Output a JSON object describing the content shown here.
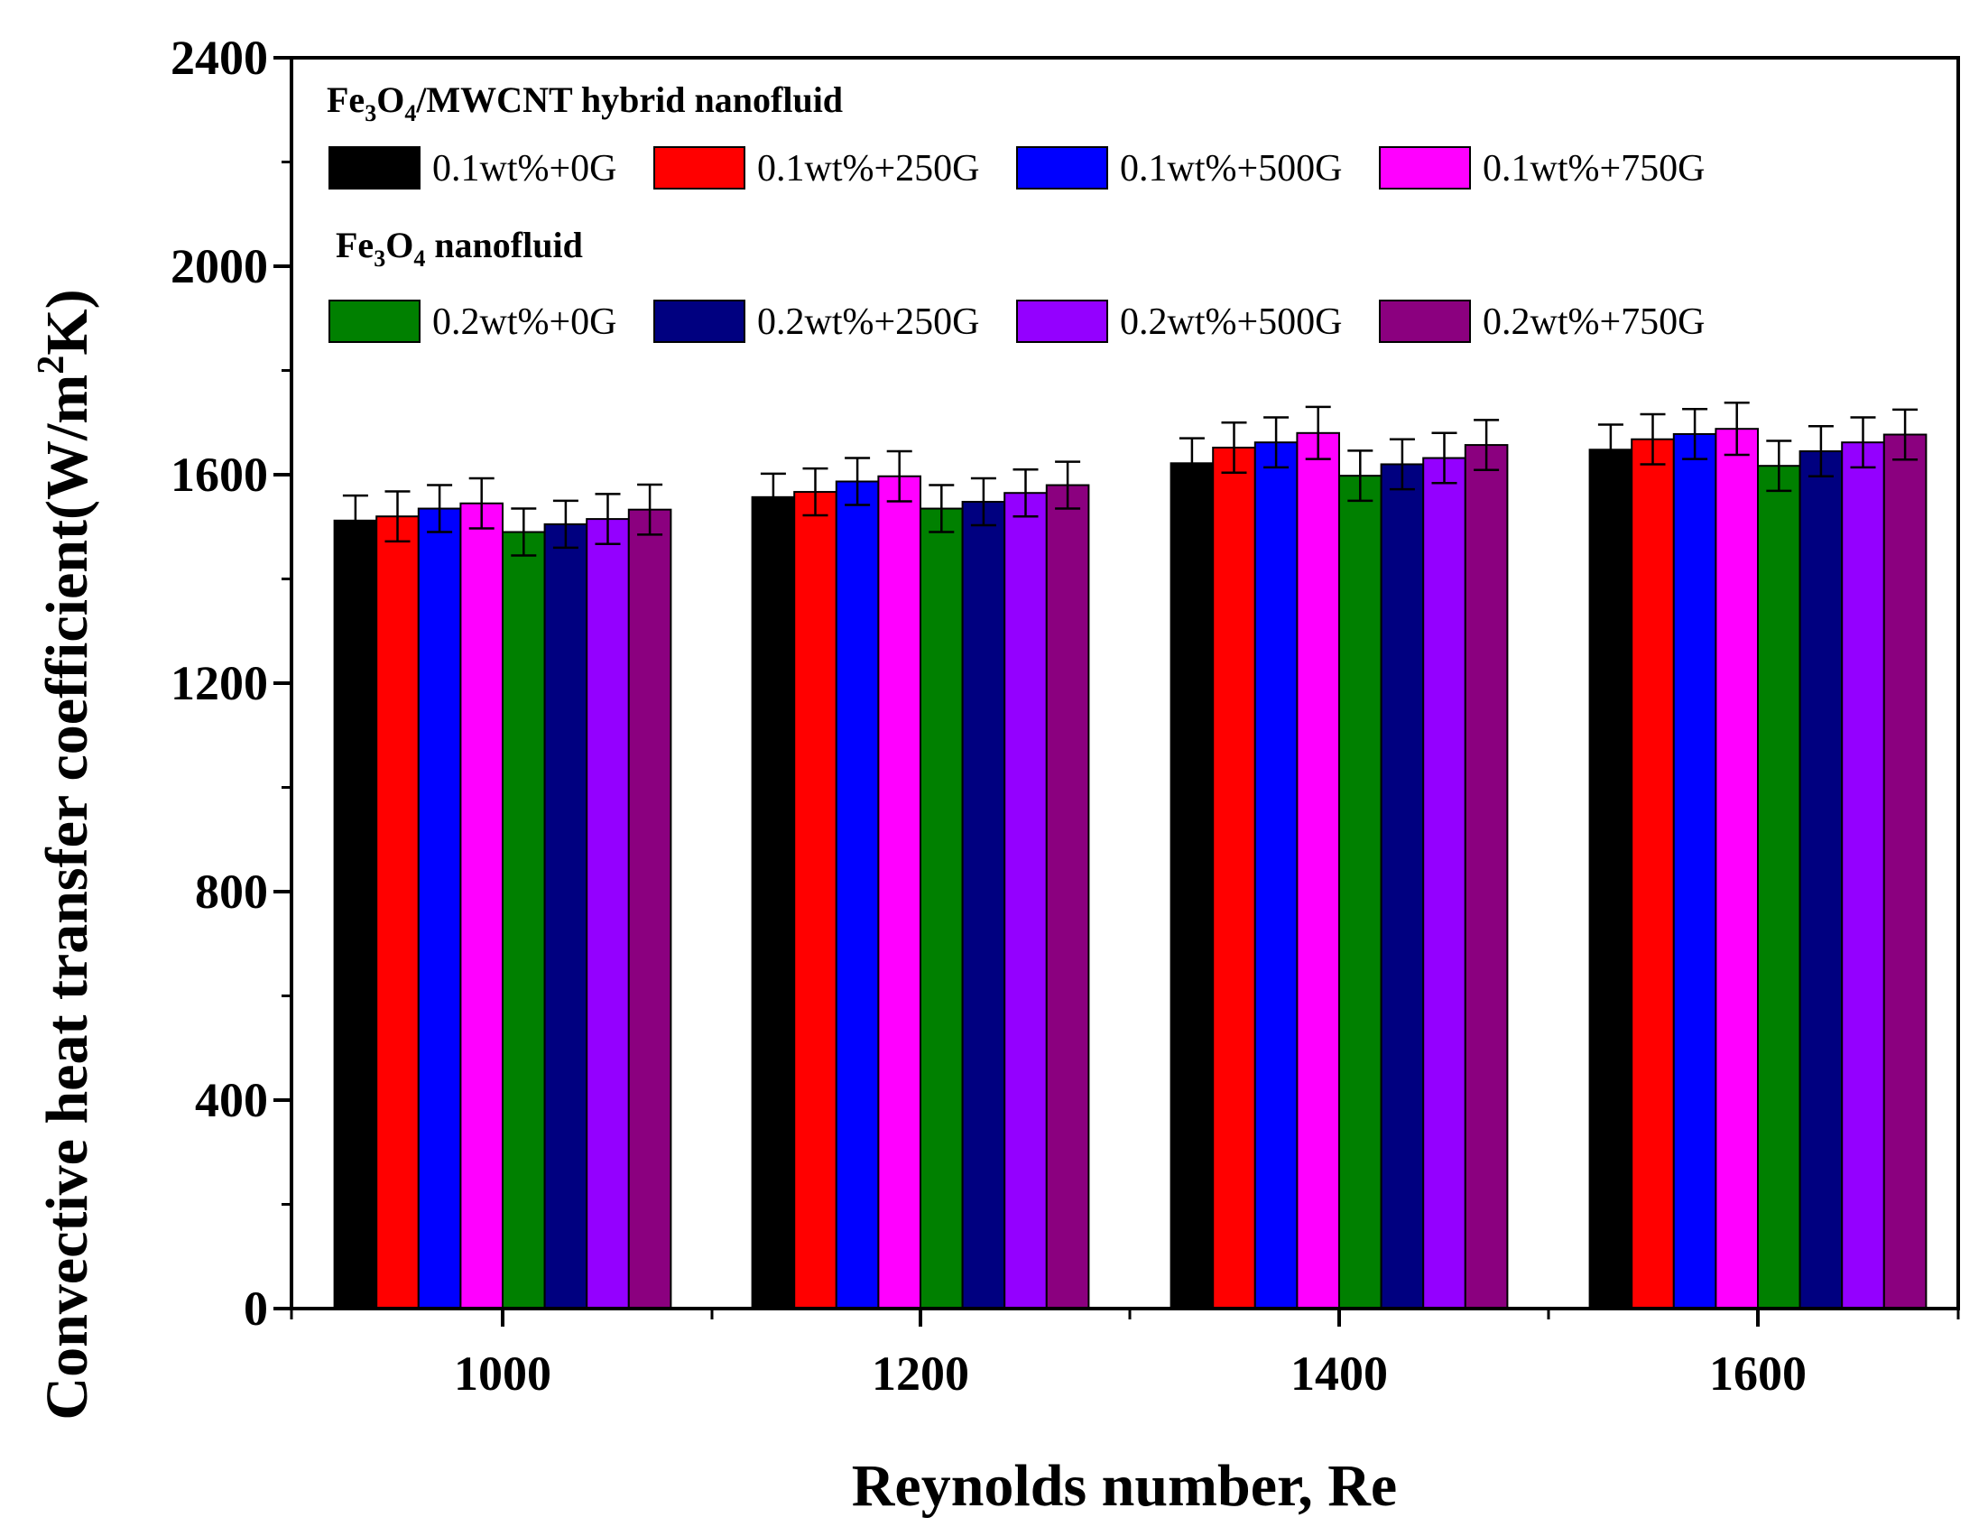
{
  "chart_data": {
    "type": "bar",
    "categories": [
      "1000",
      "1200",
      "1400",
      "1600"
    ],
    "xlabel": "Reynolds number, Re",
    "ylabel": {
      "main": "Convective heat transfer coefficient(W/m",
      "sup": "2",
      "tail": "K)"
    },
    "ylim": [
      0,
      2400
    ],
    "yticks": [
      0,
      400,
      800,
      1200,
      1600,
      2000,
      2400
    ],
    "grid": false,
    "legend_position": "top-left",
    "groups": [
      {
        "title": {
          "a": "Fe",
          "sub1": "3",
          "b": "O",
          "sub2": "4",
          "c": "/MWCNT hybrid nanofluid"
        }
      },
      {
        "title": {
          "a": "Fe",
          "sub1": "3",
          "b": "O",
          "sub2": "4",
          "c": " nanofluid"
        }
      }
    ],
    "series": [
      {
        "name": "0.1wt%+0G",
        "group": 0,
        "color": "#000000",
        "values": [
          1512,
          1557,
          1622,
          1648
        ],
        "errors": [
          48,
          45,
          48,
          48
        ]
      },
      {
        "name": "0.1wt%+250G",
        "group": 0,
        "color": "#ff0000",
        "values": [
          1520,
          1567,
          1652,
          1668
        ],
        "errors": [
          48,
          45,
          48,
          48
        ]
      },
      {
        "name": "0.1wt%+500G",
        "group": 0,
        "color": "#0000ff",
        "values": [
          1535,
          1587,
          1662,
          1678
        ],
        "errors": [
          45,
          45,
          48,
          48
        ]
      },
      {
        "name": "0.1wt%+750G",
        "group": 0,
        "color": "#ff00ff",
        "values": [
          1545,
          1597,
          1680,
          1688
        ],
        "errors": [
          48,
          48,
          50,
          50
        ]
      },
      {
        "name": "0.2wt%+0G",
        "group": 1,
        "color": "#008000",
        "values": [
          1490,
          1535,
          1598,
          1617
        ],
        "errors": [
          45,
          45,
          48,
          48
        ]
      },
      {
        "name": "0.2wt%+250G",
        "group": 1,
        "color": "#000080",
        "values": [
          1505,
          1548,
          1620,
          1645
        ],
        "errors": [
          45,
          45,
          48,
          48
        ]
      },
      {
        "name": "0.2wt%+500G",
        "group": 1,
        "color": "#9400ff",
        "values": [
          1515,
          1565,
          1632,
          1662
        ],
        "errors": [
          48,
          45,
          48,
          48
        ]
      },
      {
        "name": "0.2wt%+750G",
        "group": 1,
        "color": "#8b007f",
        "values": [
          1533,
          1580,
          1657,
          1677
        ],
        "errors": [
          48,
          45,
          48,
          48
        ]
      }
    ]
  }
}
